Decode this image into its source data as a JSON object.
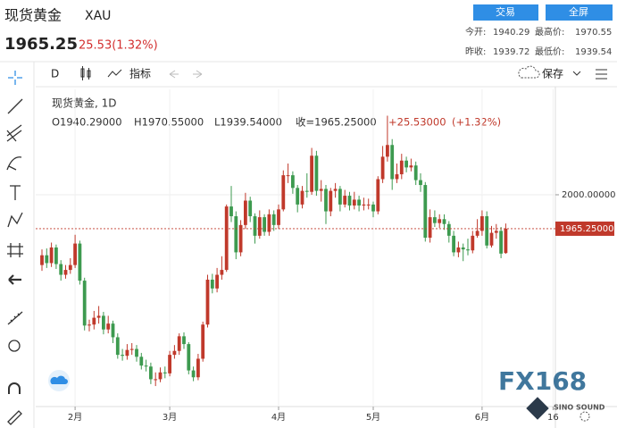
{
  "header": {
    "name": "现货黄金",
    "code": "XAU",
    "price": "1965.25",
    "change": "25.53(1.32%)",
    "buttons": [
      "交易",
      "全屏"
    ],
    "stats": [
      [
        "今开:",
        "1940.29",
        "最高价:",
        "1970.55"
      ],
      [
        "昨收:",
        "1939.72",
        "最低价:",
        "1939.54"
      ]
    ]
  },
  "toolbar": {
    "interval": "D",
    "indicators": "指标",
    "save": "保存"
  },
  "watermark": {
    "logo": "FX168",
    "sub": "SINO SOUND"
  },
  "chart_data": {
    "type": "candlestick",
    "title": "现货黄金, 1D",
    "legend": {
      "open": "O1940.29000",
      "high": "H1970.55000",
      "low": "L1939.54000",
      "close": "收=1965.25000",
      "change": "+25.53000",
      "pct": "(+1.32%)"
    },
    "categories": [
      null,
      null,
      null,
      null,
      null,
      null,
      null,
      "2月",
      null,
      null,
      null,
      null,
      null,
      null,
      null,
      null,
      null,
      null,
      null,
      null,
      null,
      null,
      null,
      null,
      null,
      null,
      null,
      "3月",
      null,
      null,
      null,
      null,
      null,
      null,
      null,
      null,
      null,
      null,
      null,
      null,
      null,
      null,
      null,
      null,
      null,
      null,
      null,
      null,
      null,
      null,
      "4月",
      null,
      null,
      null,
      null,
      null,
      null,
      null,
      null,
      null,
      null,
      null,
      null,
      null,
      null,
      null,
      null,
      null,
      null,
      null,
      "5月",
      null,
      null,
      null,
      null,
      null,
      null,
      null,
      null,
      null,
      null,
      null,
      null,
      null,
      null,
      null,
      null,
      null,
      null,
      null,
      null,
      null,
      null,
      "6月",
      null,
      null,
      null,
      null,
      null,
      null,
      null,
      null,
      null,
      null,
      null,
      null,
      null,
      null,
      "16"
    ],
    "open": [
      1928,
      1938,
      1930,
      1946,
      1929,
      1918,
      1923,
      1928,
      1950,
      1912,
      1866,
      1867,
      1874,
      1876,
      1862,
      1868,
      1854,
      1836,
      1835,
      1841,
      1842,
      1834,
      1825,
      1824,
      1811,
      1811,
      1818,
      1817,
      1836,
      1840,
      1855,
      1847,
      1820,
      1813,
      1832,
      1867,
      1913,
      1904,
      1918,
      1923,
      1988,
      1978,
      1941,
      1969,
      1994,
      1978,
      1958,
      1977,
      1962,
      1980,
      1969,
      1985,
      2020,
      2020,
      2007,
      1990,
      2004,
      2003,
      2040,
      2004,
      2006,
      1983,
      2004,
      2006,
      1990,
      1999,
      1989,
      1995,
      1989,
      1990,
      1990,
      1983,
      2016,
      2039,
      2051,
      2016,
      2021,
      2035,
      2028,
      2030,
      2015,
      2010,
      1956,
      1977,
      1971,
      1975,
      1970,
      1958,
      1941,
      1946,
      1944,
      1943,
      1958,
      1963,
      1978,
      1948,
      1961,
      1963,
      1940.29,
      null,
      null,
      null,
      null,
      null,
      null,
      null,
      null,
      null,
      null
    ],
    "high": [
      1944,
      1945,
      1951,
      1949,
      1933,
      1928,
      1935,
      1959,
      1953,
      1915,
      1872,
      1881,
      1886,
      1880,
      1876,
      1871,
      1858,
      1842,
      1847,
      1848,
      1846,
      1838,
      1831,
      1828,
      1818,
      1823,
      1824,
      1840,
      1846,
      1858,
      1859,
      1849,
      1824,
      1837,
      1870,
      1918,
      1919,
      1925,
      1937,
      1990,
      2009,
      1983,
      1974,
      2002,
      1998,
      1981,
      1984,
      1980,
      1985,
      1984,
      1990,
      2025,
      2032,
      2024,
      2010,
      2009,
      2022,
      2048,
      2045,
      2015,
      2010,
      2007,
      2012,
      2009,
      2005,
      2003,
      2003,
      1999,
      1997,
      1996,
      1993,
      2019,
      2050,
      2081,
      2057,
      2032,
      2042,
      2039,
      2037,
      2034,
      2022,
      2013,
      1985,
      1984,
      1980,
      1980,
      1973,
      1963,
      1952,
      1950,
      1955,
      1963,
      1975,
      1984,
      1983,
      1968,
      1970,
      1967,
      1970.55,
      null,
      null,
      null,
      null,
      null,
      null,
      null,
      null,
      null,
      null
    ],
    "low": [
      1922,
      1925,
      1926,
      1924,
      1912,
      1914,
      1919,
      1925,
      1908,
      1861,
      1860,
      1862,
      1868,
      1857,
      1858,
      1848,
      1832,
      1830,
      1831,
      1836,
      1829,
      1821,
      1819,
      1806,
      1804,
      1808,
      1812,
      1814,
      1832,
      1836,
      1842,
      1816,
      1809,
      1810,
      1829,
      1864,
      1899,
      1900,
      1913,
      1921,
      1972,
      1934,
      1937,
      1965,
      1972,
      1950,
      1955,
      1958,
      1958,
      1963,
      1965,
      1983,
      2012,
      2001,
      1982,
      1986,
      1997,
      2000,
      1999,
      1993,
      1970,
      1978,
      1997,
      1983,
      1987,
      1984,
      1985,
      1983,
      1984,
      1985,
      1977,
      1980,
      2012,
      2034,
      2005,
      2012,
      2016,
      2023,
      2024,
      2010,
      2003,
      1952,
      1951,
      1967,
      1966,
      1964,
      1951,
      1937,
      1936,
      1932,
      1938,
      1940,
      1956,
      1958,
      1945,
      1946,
      1955,
      1935,
      1939.54,
      null,
      null,
      null,
      null,
      null,
      null,
      null,
      null,
      null,
      null
    ],
    "close": [
      1938,
      1930,
      1946,
      1929,
      1918,
      1923,
      1928,
      1950,
      1912,
      1866,
      1867,
      1874,
      1876,
      1862,
      1868,
      1854,
      1836,
      1835,
      1841,
      1842,
      1834,
      1825,
      1824,
      1811,
      1811,
      1818,
      1817,
      1836,
      1840,
      1855,
      1847,
      1820,
      1813,
      1832,
      1867,
      1913,
      1904,
      1918,
      1923,
      1988,
      1978,
      1941,
      1969,
      1994,
      1978,
      1958,
      1977,
      1962,
      1980,
      1969,
      1985,
      2020,
      2020,
      2007,
      1990,
      2004,
      2003,
      2040,
      2004,
      2006,
      1983,
      2004,
      2006,
      1990,
      1999,
      1989,
      1995,
      1989,
      1990,
      1990,
      1983,
      2016,
      2039,
      2051,
      2016,
      2021,
      2035,
      2028,
      2030,
      2015,
      2010,
      1956,
      1977,
      1971,
      1975,
      1970,
      1958,
      1941,
      1946,
      1944,
      1943,
      1958,
      1963,
      1978,
      1948,
      1961,
      1963,
      1939.72,
      1965.25,
      null,
      null,
      null,
      null,
      null,
      null,
      null,
      null,
      null,
      null
    ],
    "ylim": [
      1783,
      2108
    ],
    "yticks": [
      {
        "value": 2000,
        "label": "2000.00000"
      }
    ],
    "last_price": {
      "value": 1965.25,
      "label": "1965.25000"
    },
    "up_color": "#c0392b",
    "down_color": "#3d9a4f",
    "grid": true
  }
}
